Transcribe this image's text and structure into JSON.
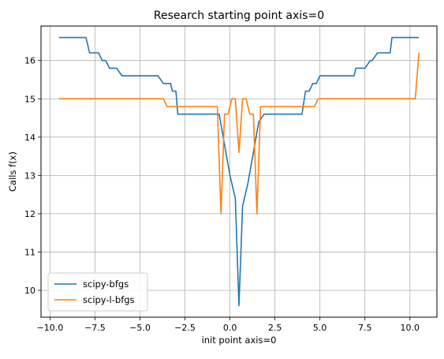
{
  "chart_data": {
    "type": "line",
    "title": "Research starting point axis=0",
    "xlabel": "init point axis=0",
    "ylabel": "Calls f(x)",
    "xlim": [
      -10.5,
      11.5
    ],
    "ylim": [
      9.3,
      16.9
    ],
    "xticks": [
      -10.0,
      -7.5,
      -5.0,
      -2.5,
      0.0,
      2.5,
      5.0,
      7.5,
      10.0
    ],
    "xtick_labels": [
      "−10.0",
      "−7.5",
      "−5.0",
      "−2.5",
      "0.0",
      "2.5",
      "5.0",
      "7.5",
      "10.0"
    ],
    "yticks": [
      10,
      11,
      12,
      13,
      14,
      15,
      16
    ],
    "ytick_labels": [
      "10",
      "11",
      "12",
      "13",
      "14",
      "15",
      "16"
    ],
    "grid": true,
    "legend_position": "lower-left",
    "series": [
      {
        "name": "scipy-bfgs",
        "color": "#1f77b4",
        "x": [
          -9.5,
          -8.0,
          -7.8,
          -7.3,
          -7.1,
          -6.9,
          -6.7,
          -6.3,
          -6.0,
          -4.0,
          -3.7,
          -3.3,
          -3.2,
          -3.0,
          -2.9,
          -1.0,
          -0.6,
          -0.3,
          0.0,
          0.3,
          0.5,
          0.7,
          1.0,
          1.3,
          1.6,
          1.9,
          4.0,
          4.2,
          4.4,
          4.6,
          4.8,
          5.0,
          6.9,
          7.0,
          7.5,
          7.8,
          7.9,
          8.2,
          8.4,
          8.9,
          9.0,
          10.5
        ],
        "y": [
          16.6,
          16.6,
          16.2,
          16.2,
          16.0,
          16.0,
          15.8,
          15.8,
          15.6,
          15.6,
          15.4,
          15.4,
          15.2,
          15.2,
          14.6,
          14.6,
          14.6,
          13.8,
          13.0,
          12.4,
          9.6,
          12.2,
          12.8,
          13.6,
          14.4,
          14.6,
          14.6,
          15.2,
          15.2,
          15.4,
          15.4,
          15.6,
          15.6,
          15.8,
          15.8,
          16.0,
          16.0,
          16.2,
          16.2,
          16.2,
          16.6,
          16.6
        ]
      },
      {
        "name": "scipy-l-bfgs",
        "color": "#ff7f0e",
        "x": [
          -9.5,
          -3.7,
          -3.5,
          -0.7,
          -0.5,
          -0.3,
          -0.1,
          0.1,
          0.3,
          0.5,
          0.7,
          0.9,
          1.1,
          1.3,
          1.5,
          1.7,
          4.7,
          4.9,
          10.3,
          10.5
        ],
        "y": [
          15.0,
          15.0,
          14.8,
          14.8,
          12.0,
          14.6,
          14.6,
          15.0,
          15.0,
          13.6,
          15.0,
          15.0,
          14.6,
          14.6,
          12.0,
          14.8,
          14.8,
          15.0,
          15.0,
          16.2
        ]
      }
    ]
  }
}
